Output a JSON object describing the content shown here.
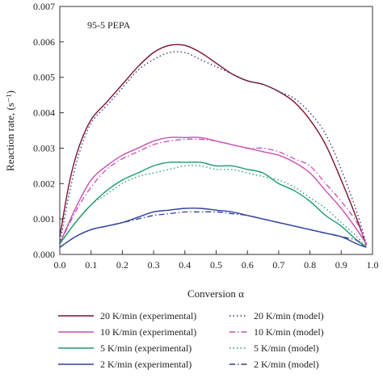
{
  "chart_data": {
    "type": "line",
    "title": "",
    "annotation": "95-5 PEPA",
    "xlabel": "Conversion α",
    "ylabel": "Reaction rate, (s⁻¹)",
    "xlim": [
      0.0,
      1.0
    ],
    "ylim": [
      0.0,
      0.007
    ],
    "x_ticks": [
      "0.0",
      "0.1",
      "0.2",
      "0.3",
      "0.4",
      "0.5",
      "0.6",
      "0.7",
      "0.8",
      "0.9",
      "1.0"
    ],
    "y_ticks": [
      "0.000",
      "0.001",
      "0.002",
      "0.003",
      "0.004",
      "0.005",
      "0.006",
      "0.007"
    ],
    "grid": false,
    "legend_position": "bottom",
    "series": [
      {
        "name": "20 K/min (experimental)",
        "color": "#7a1030",
        "dash": "solid",
        "x": [
          0.0,
          0.03,
          0.06,
          0.1,
          0.15,
          0.2,
          0.25,
          0.3,
          0.35,
          0.4,
          0.45,
          0.5,
          0.55,
          0.6,
          0.65,
          0.7,
          0.75,
          0.8,
          0.85,
          0.9,
          0.95,
          0.98
        ],
        "y": [
          0.0005,
          0.002,
          0.003,
          0.0038,
          0.0043,
          0.0048,
          0.0053,
          0.0057,
          0.0059,
          0.0059,
          0.0057,
          0.0054,
          0.0051,
          0.0049,
          0.0048,
          0.0046,
          0.0043,
          0.0038,
          0.0031,
          0.0021,
          0.001,
          0.00025
        ]
      },
      {
        "name": "20 K/min (model)",
        "color": "#2b2d7a",
        "dash": "dotted",
        "x": [
          0.0,
          0.03,
          0.06,
          0.1,
          0.15,
          0.2,
          0.25,
          0.3,
          0.35,
          0.4,
          0.45,
          0.5,
          0.55,
          0.6,
          0.65,
          0.7,
          0.75,
          0.8,
          0.85,
          0.9,
          0.95,
          0.98
        ],
        "y": [
          0.0003,
          0.0017,
          0.0028,
          0.0037,
          0.0042,
          0.0047,
          0.0052,
          0.0055,
          0.0057,
          0.0057,
          0.0055,
          0.0053,
          0.0051,
          0.0049,
          0.0048,
          0.0046,
          0.0044,
          0.004,
          0.0034,
          0.0024,
          0.0012,
          0.0003
        ]
      },
      {
        "name": "10 K/min (experimental)",
        "color": "#c84fb0",
        "dash": "solid",
        "x": [
          0.0,
          0.05,
          0.1,
          0.15,
          0.2,
          0.25,
          0.3,
          0.35,
          0.4,
          0.45,
          0.5,
          0.55,
          0.6,
          0.65,
          0.7,
          0.75,
          0.8,
          0.85,
          0.9,
          0.95,
          0.98
        ],
        "y": [
          0.0003,
          0.0013,
          0.0021,
          0.0025,
          0.0028,
          0.003,
          0.0032,
          0.0033,
          0.0033,
          0.0033,
          0.0032,
          0.0031,
          0.003,
          0.0029,
          0.0028,
          0.0026,
          0.0023,
          0.0018,
          0.0013,
          0.0007,
          0.0003
        ]
      },
      {
        "name": "10 K/min (model)",
        "color": "#c84fb0",
        "dash": "dashdot",
        "x": [
          0.0,
          0.05,
          0.1,
          0.15,
          0.2,
          0.25,
          0.3,
          0.35,
          0.4,
          0.45,
          0.5,
          0.55,
          0.6,
          0.65,
          0.7,
          0.75,
          0.8,
          0.85,
          0.9,
          0.95,
          0.98
        ],
        "y": [
          0.0003,
          0.0012,
          0.0019,
          0.0024,
          0.0027,
          0.0029,
          0.0031,
          0.0032,
          0.00325,
          0.00325,
          0.0032,
          0.0031,
          0.003,
          0.003,
          0.0029,
          0.0027,
          0.0025,
          0.002,
          0.0015,
          0.0009,
          0.0003
        ]
      },
      {
        "name": "5 K/min (experimental)",
        "color": "#1a9a6a",
        "dash": "solid",
        "x": [
          0.0,
          0.05,
          0.1,
          0.15,
          0.2,
          0.25,
          0.3,
          0.35,
          0.4,
          0.45,
          0.5,
          0.55,
          0.6,
          0.65,
          0.7,
          0.75,
          0.8,
          0.85,
          0.9,
          0.95,
          0.98
        ],
        "y": [
          0.0003,
          0.0009,
          0.0014,
          0.0018,
          0.0021,
          0.0023,
          0.0025,
          0.0026,
          0.0026,
          0.0026,
          0.0025,
          0.0025,
          0.0024,
          0.0023,
          0.002,
          0.0018,
          0.0015,
          0.0011,
          0.0008,
          0.0004,
          0.0002
        ]
      },
      {
        "name": "5 K/min (model)",
        "color": "#1a9a6a",
        "dash": "dotted",
        "x": [
          0.0,
          0.05,
          0.1,
          0.15,
          0.2,
          0.25,
          0.3,
          0.35,
          0.4,
          0.45,
          0.5,
          0.55,
          0.6,
          0.65,
          0.7,
          0.75,
          0.8,
          0.85,
          0.9,
          0.95,
          0.98
        ],
        "y": [
          0.0003,
          0.0009,
          0.0014,
          0.0017,
          0.002,
          0.0022,
          0.0023,
          0.0024,
          0.0025,
          0.0025,
          0.0024,
          0.0024,
          0.0023,
          0.0022,
          0.0021,
          0.0019,
          0.0016,
          0.0013,
          0.0009,
          0.0005,
          0.0002
        ]
      },
      {
        "name": "2 K/min (experimental)",
        "color": "#2e3f9a",
        "dash": "solid",
        "x": [
          0.0,
          0.05,
          0.1,
          0.15,
          0.2,
          0.25,
          0.3,
          0.35,
          0.4,
          0.45,
          0.5,
          0.55,
          0.6,
          0.65,
          0.7,
          0.75,
          0.8,
          0.85,
          0.9,
          0.95,
          0.98
        ],
        "y": [
          0.0002,
          0.0005,
          0.0007,
          0.0008,
          0.0009,
          0.00105,
          0.0012,
          0.00125,
          0.0013,
          0.0013,
          0.00125,
          0.0012,
          0.0011,
          0.001,
          0.0009,
          0.0008,
          0.0007,
          0.0006,
          0.0005,
          0.0003,
          0.0002
        ]
      },
      {
        "name": "2 K/min (model)",
        "color": "#2e3f9a",
        "dash": "dashdot",
        "x": [
          0.0,
          0.05,
          0.1,
          0.15,
          0.2,
          0.25,
          0.3,
          0.35,
          0.4,
          0.45,
          0.5,
          0.55,
          0.6,
          0.65,
          0.7,
          0.75,
          0.8,
          0.85,
          0.9,
          0.95,
          0.98
        ],
        "y": [
          0.0002,
          0.0005,
          0.0007,
          0.0008,
          0.0009,
          0.001,
          0.0011,
          0.00115,
          0.0012,
          0.0012,
          0.0012,
          0.00115,
          0.0011,
          0.001,
          0.0009,
          0.0008,
          0.0007,
          0.0006,
          0.0005,
          0.0004,
          0.0002
        ]
      }
    ]
  }
}
